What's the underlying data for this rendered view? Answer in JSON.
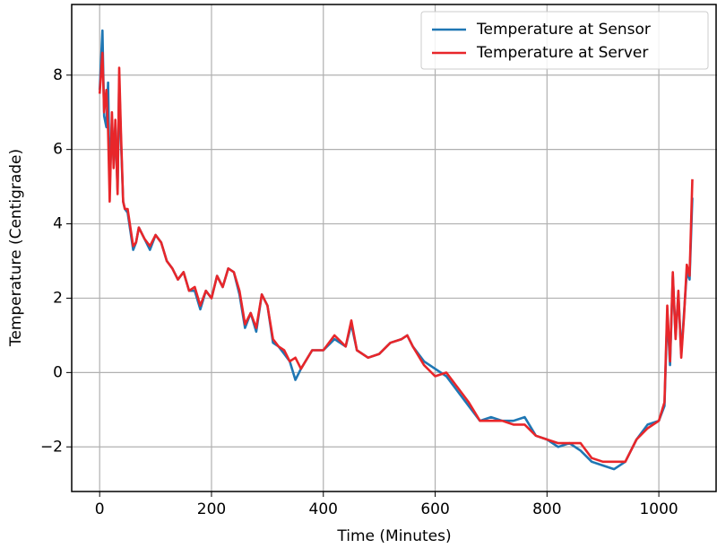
{
  "chart_data": {
    "type": "line",
    "x_label": "Time (Minutes)",
    "y_label": "Temperature (Centigrade)",
    "x": [
      0,
      5,
      8,
      12,
      15,
      18,
      22,
      25,
      28,
      32,
      35,
      38,
      42,
      45,
      50,
      55,
      60,
      65,
      70,
      80,
      90,
      100,
      110,
      120,
      130,
      140,
      150,
      160,
      170,
      180,
      190,
      200,
      210,
      220,
      230,
      240,
      250,
      260,
      270,
      280,
      290,
      300,
      310,
      320,
      330,
      340,
      350,
      360,
      380,
      400,
      420,
      440,
      450,
      460,
      480,
      500,
      520,
      540,
      550,
      560,
      580,
      600,
      620,
      640,
      660,
      680,
      700,
      720,
      740,
      760,
      780,
      800,
      820,
      840,
      860,
      880,
      900,
      920,
      940,
      960,
      980,
      1000,
      1010,
      1015,
      1020,
      1025,
      1030,
      1035,
      1040,
      1045,
      1050,
      1055,
      1060
    ],
    "series": [
      {
        "name": "Temperature at Sensor",
        "color": "#1f77b4",
        "values": [
          7.6,
          9.2,
          6.9,
          6.6,
          7.8,
          5.0,
          6.8,
          5.7,
          6.6,
          4.9,
          7.9,
          6.3,
          4.6,
          4.4,
          4.3,
          3.8,
          3.3,
          3.5,
          3.9,
          3.6,
          3.3,
          3.7,
          3.5,
          3.0,
          2.8,
          2.5,
          2.7,
          2.2,
          2.2,
          1.7,
          2.2,
          2.0,
          2.6,
          2.3,
          2.8,
          2.7,
          2.1,
          1.2,
          1.6,
          1.1,
          2.1,
          1.8,
          0.8,
          0.7,
          0.5,
          0.3,
          -0.2,
          0.1,
          0.6,
          0.6,
          0.9,
          0.7,
          1.3,
          0.6,
          0.4,
          0.5,
          0.8,
          0.9,
          1.0,
          0.7,
          0.3,
          0.1,
          -0.1,
          -0.5,
          -0.9,
          -1.3,
          -1.2,
          -1.3,
          -1.3,
          -1.2,
          -1.7,
          -1.8,
          -2.0,
          -1.9,
          -2.1,
          -2.4,
          -2.5,
          -2.6,
          -2.4,
          -1.8,
          -1.4,
          -1.3,
          -0.9,
          1.6,
          0.2,
          2.6,
          1.0,
          2.1,
          0.5,
          1.6,
          2.7,
          2.5,
          4.7
        ]
      },
      {
        "name": "Temperature at Server",
        "color": "#e8262a",
        "values": [
          7.5,
          8.6,
          7.0,
          7.6,
          6.5,
          4.6,
          7.0,
          5.5,
          6.8,
          4.8,
          8.2,
          6.5,
          4.6,
          4.4,
          4.4,
          3.9,
          3.4,
          3.5,
          3.9,
          3.6,
          3.4,
          3.7,
          3.5,
          3.0,
          2.8,
          2.5,
          2.7,
          2.2,
          2.3,
          1.8,
          2.2,
          2.0,
          2.6,
          2.3,
          2.8,
          2.7,
          2.2,
          1.3,
          1.6,
          1.2,
          2.1,
          1.8,
          0.9,
          0.7,
          0.6,
          0.3,
          0.4,
          0.1,
          0.6,
          0.6,
          1.0,
          0.7,
          1.4,
          0.6,
          0.4,
          0.5,
          0.8,
          0.9,
          1.0,
          0.7,
          0.2,
          -0.1,
          0.0,
          -0.4,
          -0.8,
          -1.3,
          -1.3,
          -1.3,
          -1.4,
          -1.4,
          -1.7,
          -1.8,
          -1.9,
          -1.9,
          -1.9,
          -2.3,
          -2.4,
          -2.4,
          -2.4,
          -1.8,
          -1.5,
          -1.3,
          -0.8,
          1.8,
          0.3,
          2.7,
          0.9,
          2.2,
          0.4,
          1.5,
          2.9,
          2.6,
          5.2
        ]
      }
    ],
    "xlim": [
      -50,
      1104
    ],
    "ylim": [
      -3.2,
      9.9
    ],
    "xticks": [
      0,
      200,
      400,
      600,
      800,
      1000
    ],
    "yticks": [
      {
        "value": -2,
        "label": "−2"
      },
      0,
      2,
      4,
      6,
      8
    ],
    "grid": true,
    "legend": "upper right"
  }
}
